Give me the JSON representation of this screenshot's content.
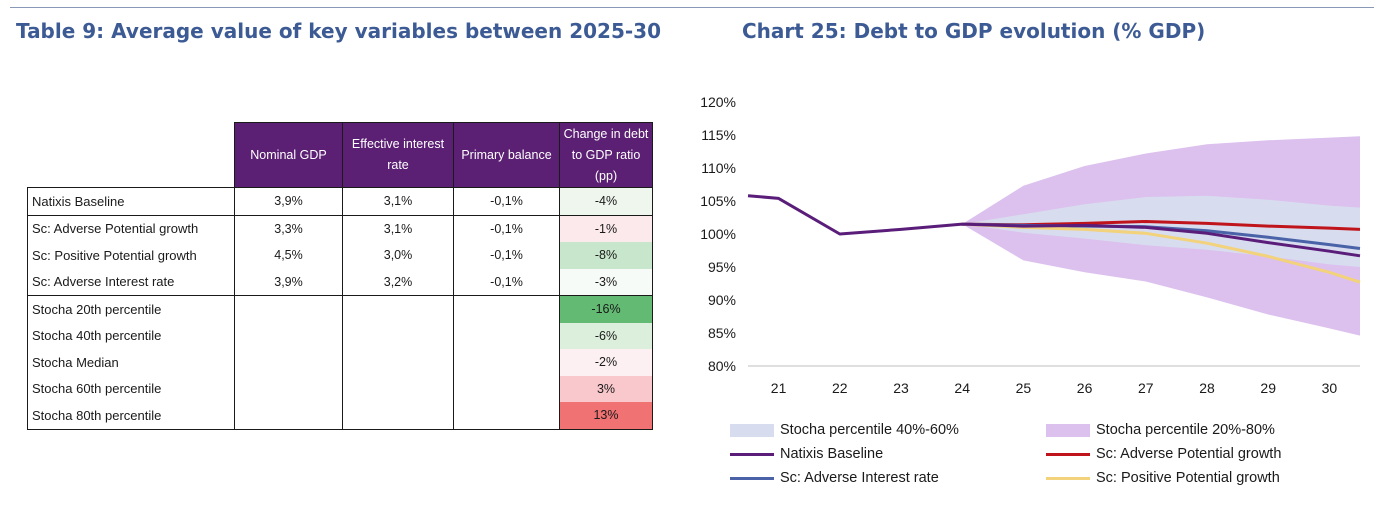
{
  "table": {
    "title": "Table 9: Average value of key variables between 2025-30",
    "headers": [
      "Nominal GDP",
      "Effective interest rate",
      "Primary balance",
      "Change in debt to GDP ratio (pp)"
    ],
    "rows": [
      {
        "label": "Natixis Baseline",
        "gdp": "3,9%",
        "rate": "3,1%",
        "primary": "-0,1%",
        "change": "-4%",
        "color": "#eef6ee"
      },
      {
        "label": "Sc: Adverse Potential growth",
        "gdp": "3,3%",
        "rate": "3,1%",
        "primary": "-0,1%",
        "change": "-1%",
        "color": "#fbe9ec"
      },
      {
        "label": "Sc: Positive Potential growth",
        "gdp": "4,5%",
        "rate": "3,0%",
        "primary": "-0,1%",
        "change": "-8%",
        "color": "#c8e6cc"
      },
      {
        "label": "Sc: Adverse Interest rate",
        "gdp": "3,9%",
        "rate": "3,2%",
        "primary": "-0,1%",
        "change": "-3%",
        "color": "#f7fbf7"
      },
      {
        "label": "Stocha 20th percentile",
        "gdp": "",
        "rate": "",
        "primary": "",
        "change": "-16%",
        "color": "#63bb73"
      },
      {
        "label": "Stocha 40th percentile",
        "gdp": "",
        "rate": "",
        "primary": "",
        "change": "-6%",
        "color": "#dcefdd"
      },
      {
        "label": "Stocha Median",
        "gdp": "",
        "rate": "",
        "primary": "",
        "change": "-2%",
        "color": "#fcf0f2"
      },
      {
        "label": "Stocha 60th percentile",
        "gdp": "",
        "rate": "",
        "primary": "",
        "change": "3%",
        "color": "#f8c8cc"
      },
      {
        "label": "Stocha 80th percentile",
        "gdp": "",
        "rate": "",
        "primary": "",
        "change": "13%",
        "color": "#f07272"
      }
    ]
  },
  "chart_data": {
    "type": "line",
    "title": "Chart 25: Debt to GDP evolution (% GDP)",
    "x": [
      "21",
      "22",
      "23",
      "24",
      "25",
      "26",
      "27",
      "28",
      "29",
      "30"
    ],
    "ylim": [
      80,
      120
    ],
    "yticks": [
      "80%",
      "85%",
      "90%",
      "95%",
      "100%",
      "105%",
      "110%",
      "115%",
      "120%"
    ],
    "ytick_values": [
      80,
      85,
      90,
      95,
      100,
      105,
      110,
      115,
      120
    ],
    "x_start": 20.5,
    "x_end": 30.5,
    "bands": [
      {
        "name": "Stocha percentile 20%-80%",
        "color": "#dcc0ee",
        "x": [
          24,
          25,
          26,
          27,
          28,
          29,
          30,
          30.5
        ],
        "upper": [
          101.5,
          107.3,
          110.3,
          112.2,
          113.6,
          114.2,
          114.6,
          114.8
        ],
        "lower": [
          101.5,
          96.0,
          94.2,
          92.8,
          90.4,
          87.8,
          85.7,
          84.6
        ]
      },
      {
        "name": "Stocha percentile 40%-60%",
        "color": "#d8dcef",
        "x": [
          24,
          25,
          26,
          27,
          28,
          29,
          30,
          30.5
        ],
        "upper": [
          101.5,
          103.0,
          104.5,
          105.6,
          105.8,
          105.2,
          104.3,
          104.0
        ],
        "lower": [
          101.5,
          100.2,
          99.3,
          98.3,
          97.6,
          96.6,
          95.4,
          95.0
        ]
      }
    ],
    "series": [
      {
        "name": "Natixis Baseline",
        "color": "#5a1e7a",
        "x": [
          20.5,
          21,
          22,
          23,
          24,
          25,
          26,
          27,
          28,
          29,
          30,
          30.5
        ],
        "values": [
          105.8,
          105.4,
          100.0,
          100.7,
          101.5,
          101.2,
          101.3,
          101.0,
          100.1,
          98.7,
          97.4,
          96.7
        ]
      },
      {
        "name": "Sc: Adverse Potential growth",
        "color": "#c0141c",
        "x": [
          24,
          25,
          26,
          27,
          28,
          29,
          30,
          30.5
        ],
        "values": [
          101.5,
          101.4,
          101.6,
          101.9,
          101.6,
          101.2,
          100.9,
          100.7
        ]
      },
      {
        "name": "Sc: Adverse Interest rate",
        "color": "#4a63a8",
        "x": [
          24,
          25,
          26,
          27,
          28,
          29,
          30,
          30.5
        ],
        "values": [
          101.5,
          101.3,
          101.2,
          101.1,
          100.5,
          99.5,
          98.4,
          97.8
        ]
      },
      {
        "name": "Sc: Positive Potential growth",
        "color": "#f2d27a",
        "x": [
          24,
          25,
          26,
          27,
          28,
          29,
          30,
          30.5
        ],
        "values": [
          101.5,
          101.0,
          100.7,
          100.1,
          98.6,
          96.6,
          94.2,
          92.7
        ]
      }
    ],
    "legend": [
      {
        "label": "Stocha percentile 40%-60%",
        "kind": "box",
        "color": "#d8dcef"
      },
      {
        "label": "Stocha percentile 20%-80%",
        "kind": "box",
        "color": "#dcc0ee"
      },
      {
        "label": "Natixis Baseline",
        "kind": "line",
        "color": "#5a1e7a"
      },
      {
        "label": "Sc: Adverse Potential growth",
        "kind": "line",
        "color": "#c0141c"
      },
      {
        "label": "Sc: Adverse Interest rate",
        "kind": "line",
        "color": "#4a63a8"
      },
      {
        "label": "Sc: Positive Potential growth",
        "kind": "line",
        "color": "#f2d27a"
      }
    ],
    "legend_position": "bottom",
    "grid": false
  }
}
